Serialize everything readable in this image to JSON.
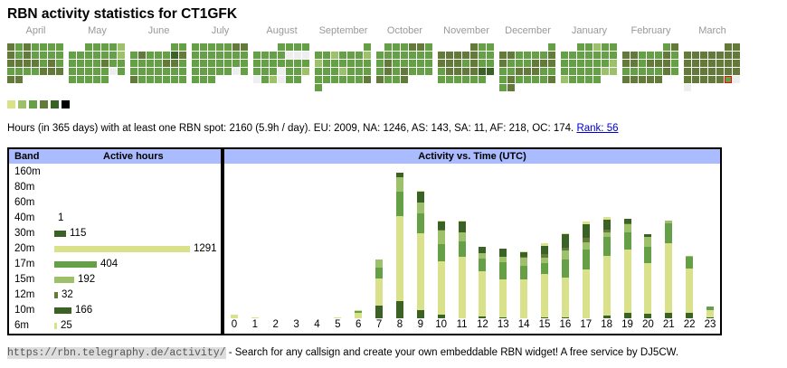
{
  "title": "RBN activity statistics for CT1GFK",
  "colors": {
    "0": "#eeeeee",
    "1": "#d9e28a",
    "2": "#9dc16b",
    "3": "#66a046",
    "4": "#637a3a",
    "5": "#3a6224",
    "6": "#000000",
    "r": "#66a046",
    "header": "#aabbff"
  },
  "calendar": [
    {
      "month": "April",
      "rows": [
        "4343333",
        "4343333",
        "4444343",
        "3333444",
        "44"
      ]
    },
    {
      "month": "May",
      "rows": [
        "  33332",
        "3333332",
        "3333433",
        "3333303",
        "33333"
      ]
    },
    {
      "month": "June",
      "rows": [
        "     33",
        "3433354",
        "3333443",
        "3333333",
        "4333333"
      ]
    },
    {
      "month": "July",
      "rows": [
        "3333344",
        "3333333",
        "3333333",
        "3333303",
        "333"
      ]
    },
    {
      "month": "August",
      "rows": [
        "   3333",
        "3333000",
        "3333333",
        "3330332",
        "032033"
      ]
    },
    {
      "month": "September",
      "rows": [
        "      3",
        "3323332",
        "2333333",
        "3332333",
        "3333334",
        "3"
      ]
    },
    {
      "month": "October",
      "rows": [
        " 333443",
        "3333333",
        "3433333",
        "3434333",
        "4334"
      ]
    },
    {
      "month": "November",
      "rows": [
        "    433",
        "4444433",
        "4443433",
        "3444455",
        "333333"
      ]
    },
    {
      "month": "December",
      "rows": [
        "      3",
        "4433334",
        "4333444",
        "3344433",
        "3433334",
        "34"
      ]
    },
    {
      "month": "January",
      "rows": [
        "  33233",
        "3333333",
        "3333332",
        "3333322",
        "23333"
      ]
    },
    {
      "month": "February",
      "rows": [
        "     34",
        "4433343",
        "4434443",
        "3333343",
        "44444"
      ]
    },
    {
      "month": "March",
      "rows": [
        "     44",
        "4444444",
        "4444444",
        "4444444",
        "44444r0",
        "0"
      ]
    }
  ],
  "legend_levels": [
    "1",
    "2",
    "3",
    "4",
    "5",
    "6"
  ],
  "summary": {
    "text": "Hours (in 365 days) with at least one RBN spot: 2160 (5.9h / day). EU: 2009, NA: 1246, AS: 143, SA: 11, AF: 218, OC: 174.",
    "rank_link": "Rank: 56"
  },
  "band_table": {
    "col_band": "Band",
    "col_hours": "Active hours",
    "rows": [
      {
        "band": "160m",
        "hours": "",
        "color": "#3a6224"
      },
      {
        "band": "80m",
        "hours": "",
        "color": "#3a6224"
      },
      {
        "band": "60m",
        "hours": "",
        "color": "#3a6224"
      },
      {
        "band": "40m",
        "hours": "1",
        "color": "#3a6224"
      },
      {
        "band": "30m",
        "hours": "115",
        "color": "#3a6224"
      },
      {
        "band": "20m",
        "hours": "1291",
        "color": "#d9e28a"
      },
      {
        "band": "17m",
        "hours": "404",
        "color": "#66a046"
      },
      {
        "band": "15m",
        "hours": "192",
        "color": "#9dc16b"
      },
      {
        "band": "12m",
        "hours": "32",
        "color": "#637a3a"
      },
      {
        "band": "10m",
        "hours": "166",
        "color": "#3a6224"
      },
      {
        "band": "6m",
        "hours": "25",
        "color": "#d9e28a"
      }
    ]
  },
  "chart_data": {
    "type": "bar",
    "title": "Activity vs. Time (UTC)",
    "xlabel": "",
    "ylabel": "",
    "categories": [
      "0",
      "1",
      "2",
      "3",
      "4",
      "5",
      "6",
      "7",
      "8",
      "9",
      "10",
      "11",
      "12",
      "13",
      "14",
      "15",
      "16",
      "17",
      "18",
      "19",
      "20",
      "21",
      "22",
      "23"
    ],
    "stack_order": [
      "30m",
      "20m",
      "17m",
      "15m",
      "12m",
      "10m",
      "6m"
    ],
    "band_colors": {
      "30m": "#3a6224",
      "20m": "#d9e28a",
      "17m": "#66a046",
      "15m": "#9dc16b",
      "12m": "#637a3a",
      "10m": "#3a6224",
      "6m": "#d9e28a"
    },
    "series": [
      {
        "name": "30m",
        "values": [
          0,
          0,
          0,
          0,
          0,
          0,
          0,
          14,
          19,
          9,
          4,
          0,
          2,
          1,
          0,
          1,
          1,
          0,
          3,
          6,
          5,
          6,
          6,
          1
        ]
      },
      {
        "name": "20m",
        "values": [
          4,
          1,
          0,
          0,
          0,
          1,
          6,
          31,
          95,
          86,
          60,
          69,
          51,
          43,
          44,
          49,
          45,
          55,
          67,
          71,
          57,
          78,
          50,
          8
        ]
      },
      {
        "name": "17m",
        "values": [
          0,
          0,
          0,
          0,
          0,
          0,
          2,
          12,
          28,
          22,
          19,
          17,
          14,
          19,
          15,
          12,
          20,
          22,
          21,
          19,
          18,
          22,
          13,
          4
        ]
      },
      {
        "name": "15m",
        "values": [
          0,
          0,
          0,
          0,
          0,
          0,
          0,
          9,
          16,
          13,
          15,
          10,
          6,
          6,
          9,
          6,
          10,
          8,
          5,
          9,
          11,
          3,
          1,
          0
        ]
      },
      {
        "name": "12m",
        "values": [
          0,
          0,
          0,
          0,
          0,
          0,
          0,
          0,
          0,
          0,
          1,
          0,
          0,
          0,
          1,
          4,
          3,
          5,
          3,
          1,
          0,
          0,
          0,
          0
        ]
      },
      {
        "name": "10m",
        "values": [
          0,
          0,
          0,
          0,
          0,
          0,
          0,
          0,
          5,
          12,
          9,
          12,
          7,
          9,
          5,
          9,
          15,
          15,
          11,
          5,
          3,
          0,
          0,
          0
        ]
      },
      {
        "name": "6m",
        "values": [
          0,
          0,
          0,
          0,
          0,
          0,
          1,
          0,
          0,
          1,
          1,
          1,
          0,
          0,
          1,
          3,
          1,
          3,
          3,
          0,
          0,
          0,
          0,
          0
        ]
      }
    ],
    "ymax": 165
  },
  "footer": {
    "url": "https://rbn.telegraphy.de/activity/",
    "text": " - Search for any callsign and create your own embeddable RBN widget! A free service by DJ5CW."
  }
}
